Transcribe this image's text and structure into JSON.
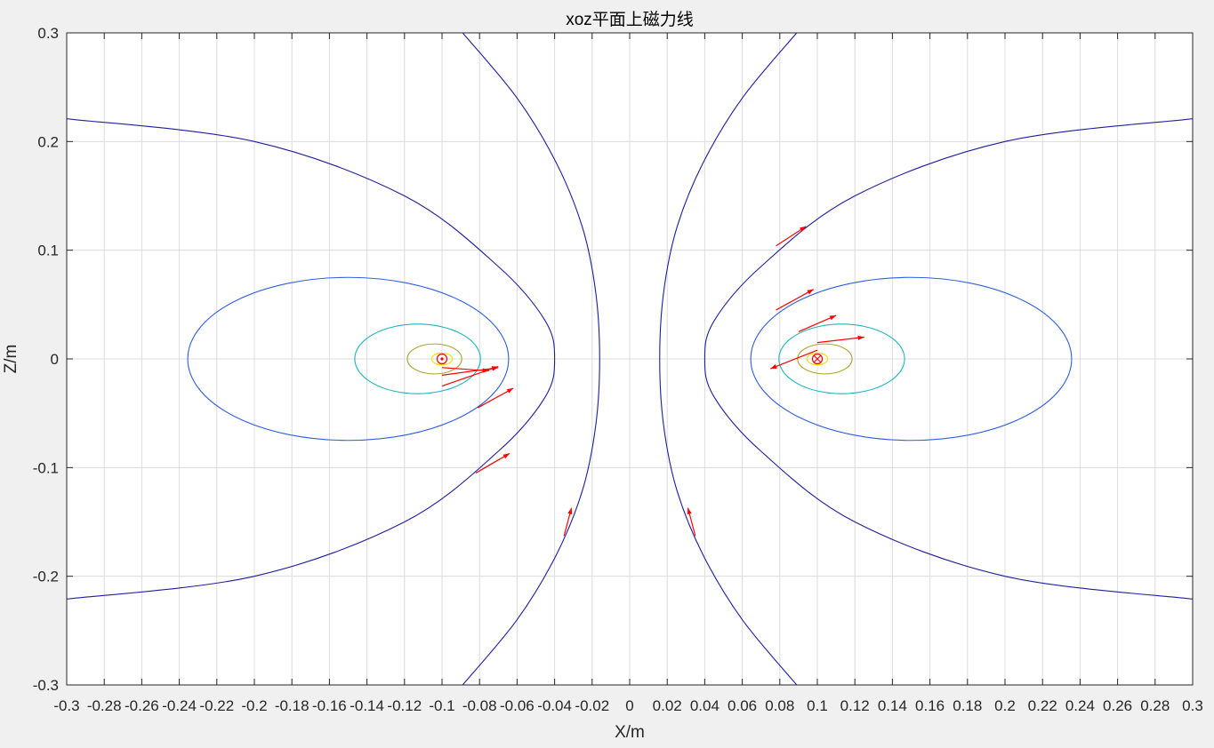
{
  "chart_data": {
    "type": "contour",
    "title": "xoz平面上磁力线",
    "xlabel": "X/m",
    "ylabel": "Z/m",
    "xlim": [
      -0.3,
      0.3
    ],
    "ylim": [
      -0.3,
      0.3
    ],
    "grid": true,
    "x_ticks": [
      -0.3,
      -0.28,
      -0.26,
      -0.24,
      -0.22,
      -0.2,
      -0.18,
      -0.16,
      -0.14,
      -0.12,
      -0.1,
      -0.08,
      -0.06,
      -0.04,
      -0.02,
      0,
      0.02,
      0.04,
      0.06,
      0.08,
      0.1,
      0.12,
      0.14,
      0.16,
      0.18,
      0.2,
      0.22,
      0.24,
      0.26,
      0.28,
      0.3
    ],
    "x_tick_labels": [
      "-0.3",
      "-0.28",
      "-0.26",
      "-0.24",
      "-0.22",
      "-0.2",
      "-0.18",
      "-0.16",
      "-0.14",
      "-0.12",
      "-0.1",
      "-0.08",
      "-0.06",
      "-0.04",
      "-0.02",
      "0",
      "0.02",
      "0.04",
      "0.06",
      "0.08",
      "0.1",
      "0.12",
      "0.14",
      "0.16",
      "0.18",
      "0.2",
      "0.22",
      "0.24",
      "0.26",
      "0.28",
      "0.3"
    ],
    "y_ticks": [
      -0.3,
      -0.2,
      -0.1,
      0,
      0.1,
      0.2,
      0.3
    ],
    "y_tick_labels": [
      "-0.3",
      "-0.2",
      "-0.1",
      "0",
      "0.1",
      "0.2",
      "0.3"
    ],
    "conductors": [
      {
        "x": -0.1,
        "z": 0,
        "symbol": "dot",
        "color": "#ff0000"
      },
      {
        "x": 0.1,
        "z": 0,
        "symbol": "cross",
        "color": "#ff0000"
      }
    ],
    "field_lines": [
      {
        "color": "#1e1ea0",
        "points": [
          [
            -0.3,
            0.221
          ],
          [
            -0.2,
            0.2
          ],
          [
            -0.12,
            0.15
          ],
          [
            -0.07,
            0.085
          ],
          [
            -0.045,
            0.035
          ],
          [
            -0.04,
            0
          ],
          [
            -0.045,
            -0.035
          ],
          [
            -0.07,
            -0.085
          ],
          [
            -0.12,
            -0.15
          ],
          [
            -0.2,
            -0.2
          ],
          [
            -0.3,
            -0.221
          ]
        ]
      },
      {
        "color": "#1e1ea0",
        "points": [
          [
            0.3,
            0.221
          ],
          [
            0.2,
            0.2
          ],
          [
            0.12,
            0.15
          ],
          [
            0.07,
            0.085
          ],
          [
            0.045,
            0.035
          ],
          [
            0.04,
            0
          ],
          [
            0.045,
            -0.035
          ],
          [
            0.07,
            -0.085
          ],
          [
            0.12,
            -0.15
          ],
          [
            0.2,
            -0.2
          ],
          [
            0.3,
            -0.221
          ]
        ]
      },
      {
        "color": "#1e1ea0",
        "points": [
          [
            -0.089,
            0.3
          ],
          [
            -0.06,
            0.24
          ],
          [
            -0.039,
            0.18
          ],
          [
            -0.025,
            0.12
          ],
          [
            -0.018,
            0.06
          ],
          [
            -0.016,
            0
          ],
          [
            -0.018,
            -0.06
          ],
          [
            -0.025,
            -0.12
          ],
          [
            -0.039,
            -0.18
          ],
          [
            -0.06,
            -0.24
          ],
          [
            -0.089,
            -0.3
          ]
        ]
      },
      {
        "color": "#1e1ea0",
        "points": [
          [
            0.089,
            0.3
          ],
          [
            0.06,
            0.24
          ],
          [
            0.039,
            0.18
          ],
          [
            0.025,
            0.12
          ],
          [
            0.018,
            0.06
          ],
          [
            0.016,
            0
          ],
          [
            0.018,
            -0.06
          ],
          [
            0.025,
            -0.12
          ],
          [
            0.039,
            -0.18
          ],
          [
            0.06,
            -0.24
          ],
          [
            0.089,
            -0.3
          ]
        ]
      }
    ],
    "loops": [
      {
        "cx": -0.15,
        "cz": 0,
        "rx": 0.0855,
        "rz": 0.075,
        "color": "#2f5fe0"
      },
      {
        "cx": 0.15,
        "cz": 0,
        "rx": 0.0855,
        "rz": 0.075,
        "color": "#2f5fe0"
      },
      {
        "cx": -0.113,
        "cz": 0,
        "rx": 0.0335,
        "rz": 0.032,
        "color": "#17b3c0"
      },
      {
        "cx": 0.113,
        "cz": 0,
        "rx": 0.0335,
        "rz": 0.032,
        "color": "#17b3c0"
      },
      {
        "cx": -0.104,
        "cz": 0,
        "rx": 0.0145,
        "rz": 0.0138,
        "color": "#a7a127"
      },
      {
        "cx": 0.104,
        "cz": 0,
        "rx": 0.0145,
        "rz": 0.0138,
        "color": "#a7a127"
      },
      {
        "cx": -0.1,
        "cz": 0,
        "rx": 0.0055,
        "rz": 0.0055,
        "color": "#f0e000"
      },
      {
        "cx": 0.1,
        "cz": 0,
        "rx": 0.0055,
        "rz": 0.0055,
        "color": "#f0e000"
      }
    ],
    "vectors": [
      {
        "x": -0.1,
        "z": -0.008,
        "dx": 0.025,
        "dz": -0.003
      },
      {
        "x": -0.1,
        "z": -0.015,
        "dx": 0.03,
        "dz": 0.007
      },
      {
        "x": -0.1,
        "z": -0.025,
        "dx": 0.03,
        "dz": 0.018
      },
      {
        "x": -0.081,
        "z": -0.045,
        "dx": 0.019,
        "dz": 0.018
      },
      {
        "x": -0.082,
        "z": -0.105,
        "dx": 0.018,
        "dz": 0.018
      },
      {
        "x": -0.035,
        "z": -0.163,
        "dx": 0.004,
        "dz": 0.026
      },
      {
        "x": 0.035,
        "z": -0.163,
        "dx": -0.004,
        "dz": 0.026
      },
      {
        "x": 0.078,
        "z": 0.104,
        "dx": 0.016,
        "dz": 0.018
      },
      {
        "x": 0.078,
        "z": 0.045,
        "dx": 0.02,
        "dz": 0.019
      },
      {
        "x": 0.09,
        "z": 0.025,
        "dx": 0.02,
        "dz": 0.015
      },
      {
        "x": 0.1,
        "z": 0.015,
        "dx": 0.025,
        "dz": 0.005
      },
      {
        "x": 0.1,
        "z": 0.008,
        "dx": -0.025,
        "dz": -0.017
      }
    ]
  }
}
